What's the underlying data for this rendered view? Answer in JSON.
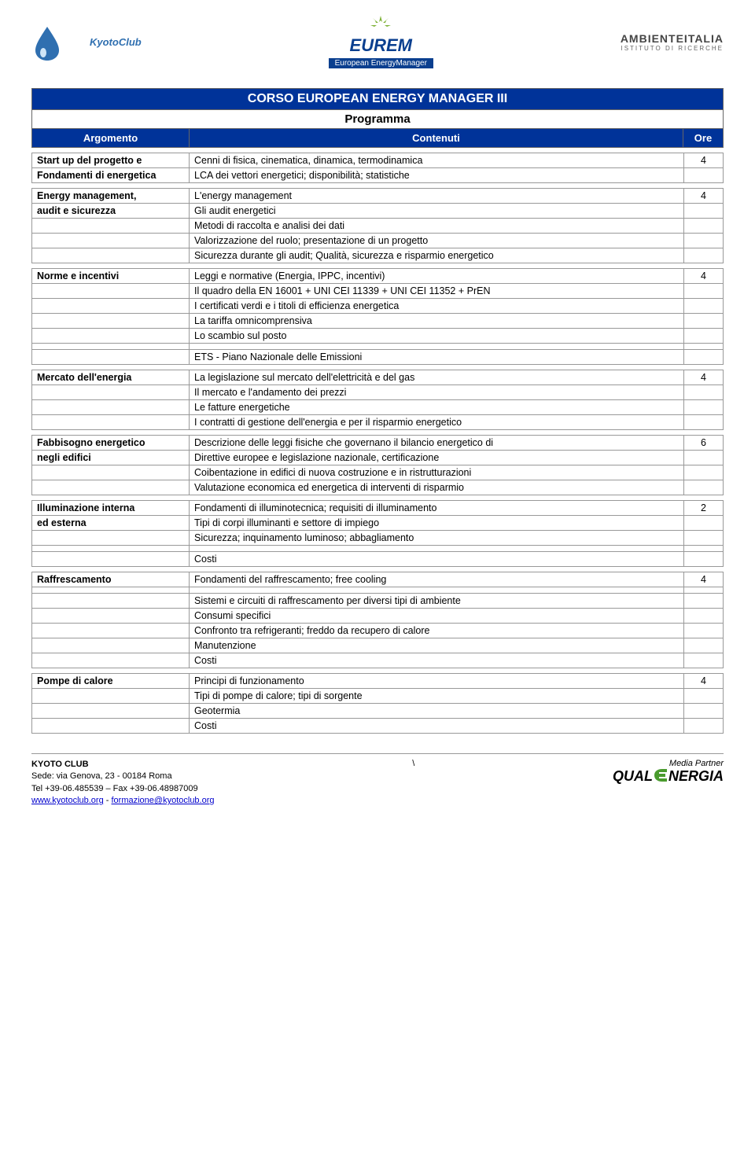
{
  "header": {
    "logo_left": "KyotoClub",
    "logo_center_brand": "EUREM",
    "logo_center_tag": "European EnergyManager",
    "logo_right_brand": "AMBIENTEITALIA",
    "logo_right_tag": "ISTITUTO DI RICERCHE"
  },
  "title": "CORSO EUROPEAN ENERGY MANAGER III",
  "subtitle": "Programma",
  "columns": {
    "argomento": "Argomento",
    "contenuti": "Contenuti",
    "ore": "Ore"
  },
  "sections": [
    {
      "topic": [
        "Start up del progetto e",
        "Fondamenti di energetica"
      ],
      "rows": [
        "Cenni di fisica, cinematica, dinamica, termodinamica",
        "LCA dei vettori energetici; disponibilità; statistiche"
      ],
      "ore": "4"
    },
    {
      "topic": [
        "Energy management,",
        "audit e sicurezza"
      ],
      "rows": [
        "L'energy management",
        "Gli audit energetici",
        "Metodi di raccolta e analisi dei dati",
        "Valorizzazione del ruolo; presentazione di un progetto",
        "Sicurezza durante gli audit; Qualità, sicurezza e risparmio energetico"
      ],
      "ore": "4"
    },
    {
      "topic": [
        "Norme e incentivi"
      ],
      "rows": [
        "Leggi e normative (Energia, IPPC, incentivi)",
        "Il quadro della EN 16001 + UNI CEI 11339 + UNI CEI 11352 + PrEN",
        "I certificati verdi e i titoli di efficienza energetica",
        "La tariffa omnicomprensiva",
        "Lo scambio sul posto"
      ],
      "extra_rows": [
        "ETS - Piano Nazionale delle Emissioni"
      ],
      "ore": "4"
    },
    {
      "topic": [
        "Mercato dell'energia"
      ],
      "rows": [
        "La legislazione sul mercato dell'elettricità e del gas",
        "Il mercato e l'andamento dei prezzi",
        "Le fatture energetiche",
        "I contratti di gestione dell'energia e per il risparmio energetico"
      ],
      "ore": "4"
    },
    {
      "topic": [
        "Fabbisogno energetico",
        "negli edifici"
      ],
      "rows": [
        "Descrizione delle leggi fisiche che governano il bilancio energetico di",
        "Direttive europee e legislazione nazionale, certificazione",
        "Coibentazione in edifici di nuova costruzione e in ristrutturazioni",
        "Valutazione economica ed energetica di interventi di risparmio"
      ],
      "ore": "6"
    },
    {
      "topic": [
        "Illuminazione interna",
        "ed esterna"
      ],
      "rows": [
        "Fondamenti di illuminotecnica; requisiti di illuminamento",
        "Tipi di corpi illuminanti e settore di impiego",
        "Sicurezza; inquinamento luminoso; abbagliamento"
      ],
      "extra_rows": [
        "Costi"
      ],
      "ore": "2"
    },
    {
      "topic": [
        "Raffrescamento"
      ],
      "rows": [
        "Fondamenti del raffrescamento; free cooling"
      ],
      "extra_rows": [
        "Sistemi e circuiti di raffrescamento per diversi tipi di ambiente",
        "Consumi specifici",
        "Confronto tra refrigeranti; freddo da recupero di calore",
        "Manutenzione",
        "Costi"
      ],
      "ore": "4"
    },
    {
      "topic": [
        "Pompe di calore"
      ],
      "rows": [
        "Principi di funzionamento",
        "Tipi di pompe di calore; tipi di sorgente",
        "Geotermia",
        "Costi"
      ],
      "ore": "4"
    }
  ],
  "footer": {
    "org": "KYOTO CLUB",
    "addr": "Sede: via Genova, 23 - 00184 Roma",
    "tel": "Tel +39-06.485539 – Fax +39-06.48987009",
    "link1": "www.kyotoclub.org",
    "sep": " - ",
    "link2": "formazione@kyotoclub.org",
    "slash": "\\",
    "media_partner": "Media Partner",
    "qual_prefix": "QUAL",
    "qual_suffix": "NERGIA"
  },
  "colors": {
    "header_bg": "#003399",
    "header_fg": "#ffffff",
    "border": "#999999",
    "text": "#000000",
    "green": "#4a9b2e",
    "eurem_blue": "#0a3f8f"
  }
}
